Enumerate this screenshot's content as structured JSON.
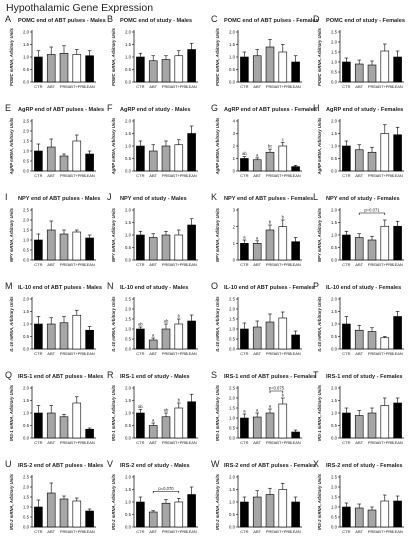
{
  "figure_title": "Hypothalamic Gene Expression",
  "categories": [
    "CTR",
    "ABT",
    "PRE",
    "ABT+PRE",
    "LEAN"
  ],
  "colors": {
    "CTR": "#000000",
    "ABT": "#a6a6a6",
    "PRE": "#a6a6a6",
    "ABT+PRE": "#ffffff",
    "LEAN": "#000000",
    "outline": "#000000"
  },
  "chart_data": [
    {
      "letter": "A",
      "type": "bar",
      "title": "POMC end of ABT pulses - Males",
      "ylabel": "POMC mRNA, Arbitrary Units",
      "ylim": [
        0,
        2.0
      ],
      "yticks": [
        0,
        0.5,
        1.0,
        1.5,
        2.0
      ],
      "tick_labels": [
        "0.0",
        "0.5",
        "1.0",
        "1.5",
        "2.0"
      ],
      "values": [
        1.0,
        1.1,
        1.15,
        1.1,
        1.05
      ],
      "errors": [
        0.25,
        0.3,
        0.3,
        0.2,
        0.2
      ],
      "annotations": []
    },
    {
      "letter": "B",
      "type": "bar",
      "title": "POMC end of study - Males",
      "ylabel": "POMC mRNA, Arbitrary Units",
      "ylim": [
        0,
        2.0
      ],
      "yticks": [
        0,
        0.5,
        1.0,
        1.5,
        2.0
      ],
      "tick_labels": [
        "0.0",
        "0.5",
        "1.0",
        "1.5",
        "2.0"
      ],
      "values": [
        1.0,
        0.85,
        0.9,
        1.05,
        1.3
      ],
      "errors": [
        0.15,
        0.2,
        0.15,
        0.2,
        0.25
      ],
      "annotations": []
    },
    {
      "letter": "C",
      "type": "bar",
      "title": "POMC end of ABT pulses - Females",
      "ylabel": "POMC mRNA, Arbitrary Units",
      "ylim": [
        0,
        2.0
      ],
      "yticks": [
        0,
        0.5,
        1.0,
        1.5,
        2.0
      ],
      "tick_labels": [
        "0.0",
        "0.5",
        "1.0",
        "1.5",
        "2.0"
      ],
      "values": [
        1.0,
        1.05,
        1.4,
        1.2,
        0.8
      ],
      "errors": [
        0.2,
        0.25,
        0.3,
        0.3,
        0.25
      ],
      "annotations": []
    },
    {
      "letter": "D",
      "type": "bar",
      "title": "POMC end of study - Females",
      "ylabel": "POMC mRNA, Arbitrary Units",
      "ylim": [
        0,
        2.5
      ],
      "yticks": [
        0,
        0.5,
        1.0,
        1.5,
        2.0,
        2.5
      ],
      "tick_labels": [
        "0.0",
        "0.5",
        "1.0",
        "1.5",
        "2.0",
        "2.5"
      ],
      "values": [
        1.0,
        0.9,
        0.85,
        1.55,
        1.25
      ],
      "errors": [
        0.2,
        0.2,
        0.2,
        0.35,
        0.3
      ],
      "annotations": []
    },
    {
      "letter": "E",
      "type": "bar",
      "title": "AgRP end of ABT pulses - Males",
      "ylabel": "AgRP mRNA, Arbitrary Units",
      "ylim": [
        0,
        2.5
      ],
      "yticks": [
        0,
        0.5,
        1.0,
        1.5,
        2.0,
        2.5
      ],
      "tick_labels": [
        "0.0",
        "0.5",
        "1.0",
        "1.5",
        "2.0",
        "2.5"
      ],
      "values": [
        1.0,
        1.2,
        0.75,
        1.5,
        0.85
      ],
      "errors": [
        0.35,
        0.4,
        0.1,
        0.3,
        0.15
      ],
      "annotations": []
    },
    {
      "letter": "F",
      "type": "bar",
      "title": "AgRP end of study - Males",
      "ylabel": "AgRP mRNA, Arbitrary Units",
      "ylim": [
        0,
        2.0
      ],
      "yticks": [
        0,
        0.5,
        1.0,
        1.5,
        2.0
      ],
      "tick_labels": [
        "0.0",
        "0.5",
        "1.0",
        "1.5",
        "2.0"
      ],
      "values": [
        1.0,
        0.8,
        1.0,
        1.05,
        1.5
      ],
      "errors": [
        0.2,
        0.25,
        0.2,
        0.2,
        0.3
      ],
      "annotations": []
    },
    {
      "letter": "G",
      "type": "bar",
      "title": "AgRP end of ABT pulses - Females",
      "ylabel": "AgRP mRNA, Arbitrary Units",
      "ylim": [
        0,
        4
      ],
      "yticks": [
        0,
        1,
        2,
        3,
        4
      ],
      "tick_labels": [
        "0",
        "1",
        "2",
        "3",
        "4"
      ],
      "values": [
        1.0,
        0.9,
        1.5,
        2.0,
        0.35
      ],
      "errors": [
        0.15,
        0.15,
        0.25,
        0.3,
        0.1
      ],
      "annotations": [
        "ab",
        "a",
        "bc",
        "c",
        ""
      ]
    },
    {
      "letter": "H",
      "type": "bar",
      "title": "AgRP end of study - Females",
      "ylabel": "AgRP mRNA, Arbitrary Units",
      "ylim": [
        0,
        2.0
      ],
      "yticks": [
        0,
        0.5,
        1.0,
        1.5,
        2.0
      ],
      "tick_labels": [
        "0.0",
        "0.5",
        "1.0",
        "1.5",
        "2.0"
      ],
      "values": [
        1.0,
        0.85,
        0.75,
        1.5,
        1.45
      ],
      "errors": [
        0.2,
        0.2,
        0.2,
        0.35,
        0.3
      ],
      "annotations": []
    },
    {
      "letter": "I",
      "type": "bar",
      "title": "NPY end of ABT pulses - Males",
      "ylabel": "NPY mRNA, Arbitrary Units",
      "ylim": [
        0,
        2.5
      ],
      "yticks": [
        0,
        0.5,
        1.0,
        1.5,
        2.0,
        2.5
      ],
      "tick_labels": [
        "0.0",
        "0.5",
        "1.0",
        "1.5",
        "2.0",
        "2.5"
      ],
      "values": [
        1.0,
        1.5,
        1.3,
        1.4,
        1.1
      ],
      "errors": [
        0.3,
        0.45,
        0.2,
        0.1,
        0.15
      ],
      "annotations": []
    },
    {
      "letter": "J",
      "type": "bar",
      "title": "NPY end of study - Males",
      "ylabel": "NPY mRNA, Arbitrary Units",
      "ylim": [
        0,
        2.0
      ],
      "yticks": [
        0,
        0.5,
        1.0,
        1.5,
        2.0
      ],
      "tick_labels": [
        "0.0",
        "0.5",
        "1.0",
        "1.5",
        "2.0"
      ],
      "values": [
        1.0,
        0.9,
        1.0,
        1.0,
        1.4
      ],
      "errors": [
        0.15,
        0.15,
        0.15,
        0.2,
        0.25
      ],
      "annotations": []
    },
    {
      "letter": "K",
      "type": "bar",
      "title": "NPY end of ABT pulses - Females",
      "ylabel": "NPY mRNA, Arbitrary Units",
      "ylim": [
        0,
        3
      ],
      "yticks": [
        0,
        1,
        2,
        3
      ],
      "tick_labels": [
        "0",
        "1",
        "2",
        "3"
      ],
      "values": [
        1.0,
        1.0,
        1.8,
        2.0,
        1.1
      ],
      "errors": [
        0.2,
        0.15,
        0.3,
        0.4,
        0.25
      ],
      "annotations": [
        "a",
        "a",
        "b",
        "b",
        ""
      ]
    },
    {
      "letter": "L",
      "type": "bar",
      "title": "NPY end of study - Females",
      "ylabel": "NPY mRNA, Arbitrary Units",
      "ylim": [
        0,
        2.0
      ],
      "yticks": [
        0,
        0.5,
        1.0,
        1.5,
        2.0
      ],
      "tick_labels": [
        "0.0",
        "0.5",
        "1.0",
        "1.5",
        "2.0"
      ],
      "values": [
        1.0,
        0.9,
        0.8,
        1.35,
        1.35
      ],
      "errors": [
        0.15,
        0.15,
        0.15,
        0.25,
        0.2
      ],
      "annotations": [],
      "bracket": {
        "from": 1,
        "to": 3,
        "label": "p=0.071"
      }
    },
    {
      "letter": "M",
      "type": "bar",
      "title": "IL-10 end of ABT pulses - Males",
      "ylabel": "IL-10 mRNA, Arbitrary Units",
      "ylim": [
        0,
        2.0
      ],
      "yticks": [
        0,
        0.5,
        1.0,
        1.5,
        2.0
      ],
      "tick_labels": [
        "0.0",
        "0.5",
        "1.0",
        "1.5",
        "2.0"
      ],
      "values": [
        1.0,
        1.0,
        1.05,
        1.35,
        0.75
      ],
      "errors": [
        0.3,
        0.25,
        0.25,
        0.2,
        0.15
      ],
      "annotations": []
    },
    {
      "letter": "N",
      "type": "bar",
      "title": "IL-10 end of study - Males",
      "ylabel": "IL-10 mRNA, Arbitrary Units",
      "ylim": [
        0,
        2.5
      ],
      "yticks": [
        0,
        0.5,
        1.0,
        1.5,
        2.0,
        2.5
      ],
      "tick_labels": [
        "0.0",
        "0.5",
        "1.0",
        "1.5",
        "2.0",
        "2.5"
      ],
      "values": [
        1.0,
        0.45,
        1.0,
        1.25,
        1.4
      ],
      "errors": [
        0.1,
        0.1,
        0.25,
        0.25,
        0.3
      ],
      "annotations": [
        "ab",
        "a",
        "ab",
        "b",
        ""
      ]
    },
    {
      "letter": "O",
      "type": "bar",
      "title": "IL-10 end of ABT pulses - Females",
      "ylabel": "IL-10 mRNA, Arbitrary Units",
      "ylim": [
        0,
        2.5
      ],
      "yticks": [
        0,
        0.5,
        1.0,
        1.5,
        2.0,
        2.5
      ],
      "tick_labels": [
        "0.0",
        "0.5",
        "1.0",
        "1.5",
        "2.0",
        "2.5"
      ],
      "values": [
        1.0,
        1.1,
        1.35,
        1.55,
        0.7
      ],
      "errors": [
        0.3,
        0.3,
        0.4,
        0.3,
        0.2
      ],
      "annotations": []
    },
    {
      "letter": "P",
      "type": "bar",
      "title": "IL-10 end of study - Females",
      "ylabel": "IL-10 mRNA, Arbitrary Units",
      "ylim": [
        0,
        2.0
      ],
      "yticks": [
        0,
        0.5,
        1.0,
        1.5,
        2.0
      ],
      "tick_labels": [
        "0.0",
        "0.5",
        "1.0",
        "1.5",
        "2.0"
      ],
      "values": [
        1.0,
        0.75,
        0.7,
        0.45,
        1.3
      ],
      "errors": [
        0.3,
        0.2,
        0.15,
        0.05,
        0.2
      ],
      "annotations": []
    },
    {
      "letter": "Q",
      "type": "bar",
      "title": "IRS-1 end of ABT pulses - Males",
      "ylabel": "IRS-1 mRNA, Arbitrary Units",
      "ylim": [
        0,
        2.0
      ],
      "yticks": [
        0,
        0.5,
        1.0,
        1.5,
        2.0
      ],
      "tick_labels": [
        "0.0",
        "0.5",
        "1.0",
        "1.5",
        "2.0"
      ],
      "values": [
        1.0,
        1.0,
        0.85,
        1.4,
        0.35
      ],
      "errors": [
        0.3,
        0.3,
        0.1,
        0.25,
        0.05
      ],
      "annotations": []
    },
    {
      "letter": "R",
      "type": "bar",
      "title": "IRS-1 end of study - Males",
      "ylabel": "IRS-1 mRNA, Arbitrary Units",
      "ylim": [
        0,
        2.0
      ],
      "yticks": [
        0,
        0.5,
        1.0,
        1.5,
        2.0
      ],
      "tick_labels": [
        "0.0",
        "0.5",
        "1.0",
        "1.5",
        "2.0"
      ],
      "values": [
        1.0,
        0.5,
        0.85,
        1.2,
        1.45
      ],
      "errors": [
        0.15,
        0.1,
        0.15,
        0.2,
        0.3
      ],
      "annotations": [
        "ab",
        "a",
        "ab",
        "b",
        ""
      ]
    },
    {
      "letter": "S",
      "type": "bar",
      "title": "IRS-1 end of ABT pulses - Females",
      "ylabel": "IRS-1 mRNA, Arbitrary Units",
      "ylim": [
        0,
        2.5
      ],
      "yticks": [
        0,
        0.5,
        1.0,
        1.5,
        2.0,
        2.5
      ],
      "tick_labels": [
        "0.0",
        "0.5",
        "1.0",
        "1.5",
        "2.0",
        "2.5"
      ],
      "values": [
        1.0,
        1.05,
        1.25,
        1.7,
        0.3
      ],
      "errors": [
        0.2,
        0.2,
        0.2,
        0.3,
        0.1
      ],
      "annotations": [
        "a",
        "a",
        "a",
        "b",
        ""
      ],
      "bracket": {
        "from": 2,
        "to": 3,
        "label": "p=0.075"
      }
    },
    {
      "letter": "T",
      "type": "bar",
      "title": "IRS-1 end of study - Females",
      "ylabel": "IRS-1 mRNA, Arbitrary Units",
      "ylim": [
        0,
        2.0
      ],
      "yticks": [
        0,
        0.5,
        1.0,
        1.5,
        2.0
      ],
      "tick_labels": [
        "0.0",
        "0.5",
        "1.0",
        "1.5",
        "2.0"
      ],
      "values": [
        1.0,
        0.9,
        1.0,
        1.3,
        1.4
      ],
      "errors": [
        0.2,
        0.2,
        0.2,
        0.3,
        0.2
      ],
      "annotations": []
    },
    {
      "letter": "U",
      "type": "bar",
      "title": "IRS-2 end of ABT pulses - Males",
      "ylabel": "IRS-2 mRNA, Arbitrary Units",
      "ylim": [
        0,
        2.5
      ],
      "yticks": [
        0,
        0.5,
        1.0,
        1.5,
        2.0,
        2.5
      ],
      "tick_labels": [
        "0.0",
        "0.5",
        "1.0",
        "1.5",
        "2.0",
        "2.5"
      ],
      "values": [
        1.0,
        1.7,
        1.4,
        1.3,
        0.8
      ],
      "errors": [
        0.35,
        0.5,
        0.15,
        0.15,
        0.1
      ],
      "annotations": []
    },
    {
      "letter": "V",
      "type": "bar",
      "title": "IRS-2 end of study - Males",
      "ylabel": "IRS-2 mRNA, Arbitrary Units",
      "ylim": [
        0,
        2.0
      ],
      "yticks": [
        0,
        0.5,
        1.0,
        1.5,
        2.0
      ],
      "tick_labels": [
        "0.0",
        "0.5",
        "1.0",
        "1.5",
        "2.0"
      ],
      "values": [
        1.0,
        0.6,
        0.95,
        1.0,
        1.3
      ],
      "errors": [
        0.2,
        0.05,
        0.15,
        0.15,
        0.3
      ],
      "annotations": [],
      "bracket": {
        "from": 1,
        "to": 3,
        "label": "p=0.070"
      }
    },
    {
      "letter": "W",
      "type": "bar",
      "title": "IRS-2 end of ABT pulses - Females",
      "ylabel": "IRS-2 mRNA, Arbitrary Units",
      "ylim": [
        0,
        2.0
      ],
      "yticks": [
        0,
        0.5,
        1.0,
        1.5,
        2.0
      ],
      "tick_labels": [
        "0.0",
        "0.5",
        "1.0",
        "1.5",
        "2.0"
      ],
      "values": [
        1.0,
        1.2,
        1.3,
        1.5,
        1.0
      ],
      "errors": [
        0.2,
        0.25,
        0.25,
        0.25,
        0.2
      ],
      "annotations": []
    },
    {
      "letter": "X",
      "type": "bar",
      "title": "IRS-2 end of study - Females",
      "ylabel": "IRS-2 mRNA, Arbitrary Units",
      "ylim": [
        0,
        2.5
      ],
      "yticks": [
        0,
        0.5,
        1.0,
        1.5,
        2.0,
        2.5
      ],
      "tick_labels": [
        "0.0",
        "0.5",
        "1.0",
        "1.5",
        "2.0",
        "2.5"
      ],
      "values": [
        1.0,
        0.95,
        0.85,
        1.3,
        1.3
      ],
      "errors": [
        0.2,
        0.2,
        0.15,
        0.3,
        0.25
      ],
      "annotations": []
    }
  ]
}
